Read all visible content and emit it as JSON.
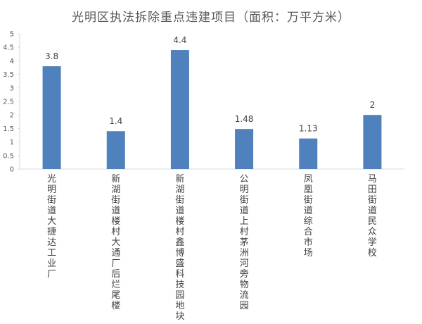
{
  "chart_data": {
    "type": "bar",
    "title": "光明区执法拆除重点违建项目（面积：万平方米）",
    "xlabel": "",
    "ylabel": "",
    "categories": [
      "光明街道大捷达工业厂",
      "新湖街道楼村大通厂后烂尾楼",
      "新湖街道楼村鑫博盛科技园地块",
      "公明街道上村茅洲河旁物流园",
      "凤凰街道综合市场",
      "马田街道民众学校"
    ],
    "values": [
      3.8,
      1.4,
      4.4,
      1.48,
      1.13,
      2
    ],
    "data_labels": [
      "3.8",
      "1.4",
      "4.4",
      "1.48",
      "1.13",
      "2"
    ],
    "ylim": [
      0,
      5
    ],
    "yticks": [
      "0",
      "0.5",
      "1",
      "1.5",
      "2",
      "2.5",
      "3",
      "3.5",
      "4",
      "4.5",
      "5"
    ],
    "grid": false,
    "legend": "none",
    "bar_color": "#4f81bd",
    "axis_color": "#d9d9d9"
  }
}
